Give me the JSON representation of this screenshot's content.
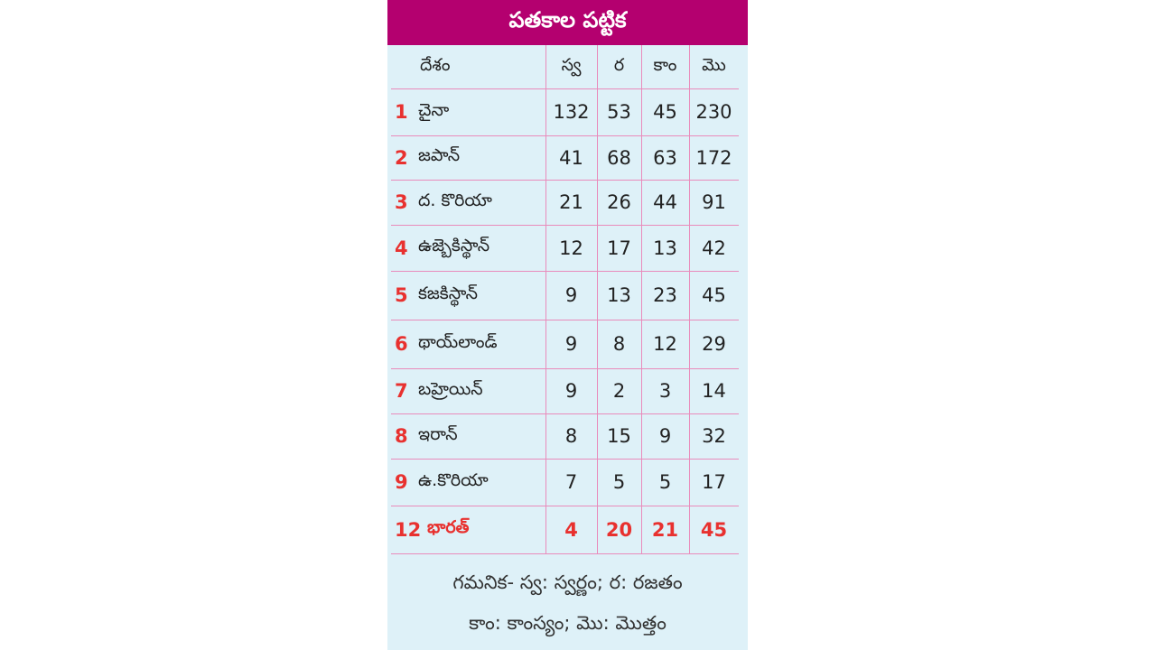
{
  "header": {
    "title": "పతకాల పట్టిక"
  },
  "table": {
    "columns": [
      "దేశం",
      "స్వ",
      "ర",
      "కాం",
      "మొ"
    ],
    "rows": [
      [
        1,
        "చైనా",
        132,
        53,
        45,
        230
      ],
      [
        2,
        "జపాన్",
        41,
        68,
        63,
        172
      ],
      [
        3,
        "ద. కొరియా",
        21,
        26,
        44,
        91
      ],
      [
        4,
        "ఉజ్బెకిస్థాన్",
        12,
        17,
        13,
        42
      ],
      [
        5,
        "కజకిస్థాన్",
        9,
        13,
        23,
        45
      ],
      [
        6,
        "థాయ్‌లాండ్",
        9,
        8,
        12,
        29
      ],
      [
        7,
        "బహ్రెయిన్",
        9,
        2,
        3,
        14
      ],
      [
        8,
        "ఇరాన్",
        8,
        15,
        9,
        32
      ],
      [
        9,
        "ఉ.కొరియా",
        7,
        5,
        5,
        17
      ],
      [
        12,
        "భారత్",
        4,
        20,
        21,
        45
      ]
    ]
  },
  "footnote": [
    "గమనిక- స్వ: స్వర్ణం; ర: రజతం",
    "కాం: కాంస్యం; మొ: మొత్తం"
  ]
}
